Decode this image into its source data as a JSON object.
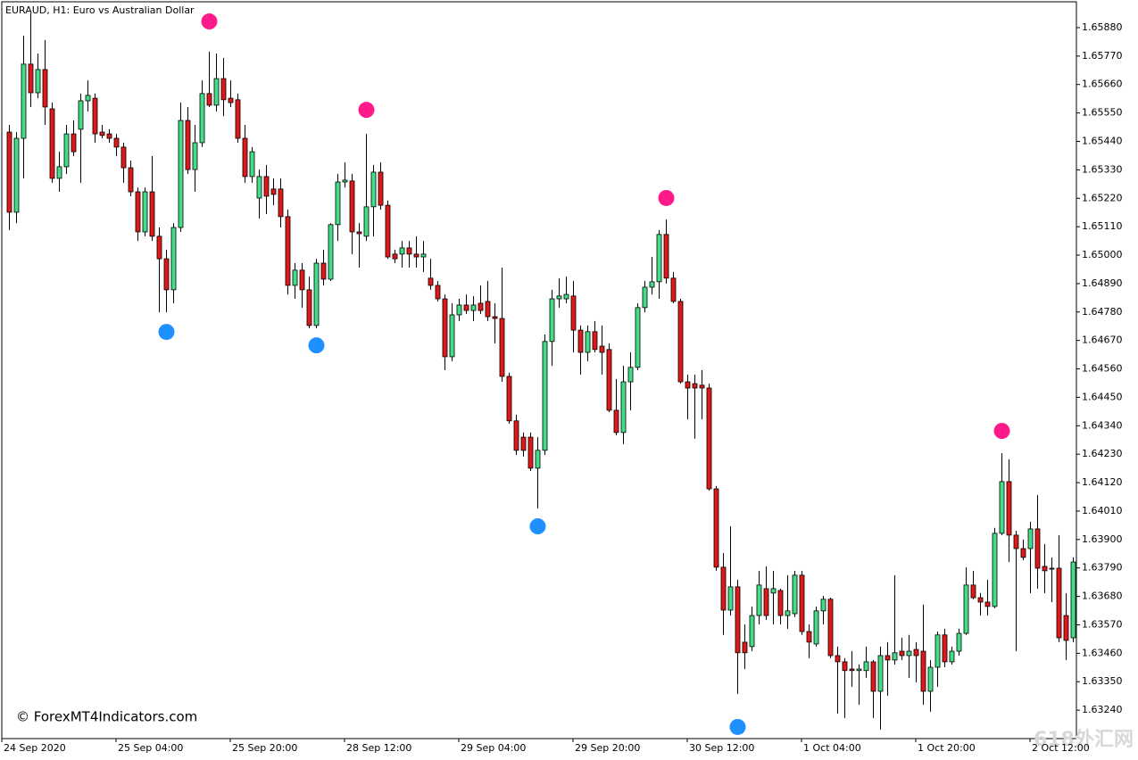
{
  "chart_data": {
    "type": "candlestick",
    "title": "EURAUD, H1:  Euro vs Australian Dollar",
    "annotation": "© ForexMT4Indicators.com",
    "watermark": "618外汇网",
    "up_color": "#44dd88",
    "down_color": "#e01818",
    "ylim": [
      1.6313,
      1.6598
    ],
    "yticks": [
      {
        "value": 1.6588,
        "label": "1.65880"
      },
      {
        "value": 1.6577,
        "label": "1.65770"
      },
      {
        "value": 1.6566,
        "label": "1.65660"
      },
      {
        "value": 1.6555,
        "label": "1.65550"
      },
      {
        "value": 1.6544,
        "label": "1.65440"
      },
      {
        "value": 1.6533,
        "label": "1.65330"
      },
      {
        "value": 1.6522,
        "label": "1.65220"
      },
      {
        "value": 1.6511,
        "label": "1.65110"
      },
      {
        "value": 1.65,
        "label": "1.65000"
      },
      {
        "value": 1.6489,
        "label": "1.64890"
      },
      {
        "value": 1.6478,
        "label": "1.64780"
      },
      {
        "value": 1.6467,
        "label": "1.64670"
      },
      {
        "value": 1.6456,
        "label": "1.64560"
      },
      {
        "value": 1.6445,
        "label": "1.64450"
      },
      {
        "value": 1.6434,
        "label": "1.64340"
      },
      {
        "value": 1.6423,
        "label": "1.64230"
      },
      {
        "value": 1.6412,
        "label": "1.64120"
      },
      {
        "value": 1.6401,
        "label": "1.64010"
      },
      {
        "value": 1.639,
        "label": "1.63900"
      },
      {
        "value": 1.6379,
        "label": "1.63790"
      },
      {
        "value": 1.6368,
        "label": "1.63680"
      },
      {
        "value": 1.6357,
        "label": "1.63570"
      },
      {
        "value": 1.6346,
        "label": "1.63460"
      },
      {
        "value": 1.6335,
        "label": "1.63350"
      },
      {
        "value": 1.6324,
        "label": "1.63240"
      }
    ],
    "categories": [
      "24 Sep 2020",
      null,
      null,
      null,
      null,
      null,
      null,
      null,
      null,
      null,
      null,
      null,
      null,
      null,
      null,
      null,
      "25 Sep 04:00",
      null,
      null,
      null,
      null,
      null,
      null,
      null,
      null,
      null,
      null,
      null,
      null,
      null,
      null,
      null,
      "25 Sep 20:00",
      null,
      null,
      null,
      null,
      null,
      null,
      null,
      null,
      null,
      null,
      null,
      null,
      null,
      null,
      null,
      "28 Sep 12:00",
      null,
      null,
      null,
      null,
      null,
      null,
      null,
      null,
      null,
      null,
      null,
      null,
      null,
      null,
      null,
      "29 Sep 04:00",
      null,
      null,
      null,
      null,
      null,
      null,
      null,
      null,
      null,
      null,
      null,
      null,
      null,
      null,
      null,
      "29 Sep 20:00",
      null,
      null,
      null,
      null,
      null,
      null,
      null,
      null,
      null,
      null,
      null,
      null,
      null,
      null,
      null,
      "30 Sep 12:00",
      null,
      null,
      null,
      null,
      null,
      null,
      null,
      null,
      null,
      null,
      null,
      null,
      null,
      null,
      null,
      "1 Oct 04:00",
      null,
      null,
      null,
      null,
      null,
      null,
      null,
      null,
      null,
      null,
      null,
      null,
      null,
      null,
      null,
      "1 Oct 20:00",
      null,
      null,
      null,
      null,
      null,
      null,
      null,
      null,
      null,
      null,
      null,
      null,
      null,
      null,
      null,
      "2 Oct 12:00",
      null,
      null,
      null,
      null,
      null
    ],
    "ohlc": [
      [
        1.65476,
        1.65504,
        1.65097,
        1.65166
      ],
      [
        1.65166,
        1.65476,
        1.65124,
        1.65452
      ],
      [
        1.65452,
        1.65849,
        1.65297,
        1.65739
      ],
      [
        1.65739,
        1.65935,
        1.65573,
        1.65628
      ],
      [
        1.65628,
        1.6578,
        1.65607,
        1.65718
      ],
      [
        1.65718,
        1.65832,
        1.65504,
        1.65573
      ],
      [
        1.65566,
        1.6559,
        1.6528,
        1.65297
      ],
      [
        1.65297,
        1.654,
        1.65245,
        1.65342
      ],
      [
        1.65342,
        1.65504,
        1.65314,
        1.65469
      ],
      [
        1.65469,
        1.65521,
        1.65383,
        1.654
      ],
      [
        1.65487,
        1.65625,
        1.6528,
        1.65597
      ],
      [
        1.65597,
        1.65676,
        1.65556,
        1.65618
      ],
      [
        1.65607,
        1.65625,
        1.65435,
        1.65469
      ],
      [
        1.65476,
        1.65504,
        1.65452,
        1.65463
      ],
      [
        1.65469,
        1.65487,
        1.65435,
        1.65452
      ],
      [
        1.65452,
        1.65469,
        1.65383,
        1.65418
      ],
      [
        1.65418,
        1.65435,
        1.6528,
        1.65338
      ],
      [
        1.65338,
        1.65366,
        1.65228,
        1.65245
      ],
      [
        1.65245,
        1.65262,
        1.65055,
        1.6509
      ],
      [
        1.6509,
        1.65262,
        1.65073,
        1.65245
      ],
      [
        1.65245,
        1.65383,
        1.65055,
        1.65073
      ],
      [
        1.65073,
        1.65107,
        1.64779,
        1.64986
      ],
      [
        1.64986,
        1.65021,
        1.64779,
        1.64866
      ],
      [
        1.64866,
        1.65124,
        1.64814,
        1.65107
      ],
      [
        1.65107,
        1.6559,
        1.6509,
        1.65521
      ],
      [
        1.65521,
        1.65573,
        1.65314,
        1.65331
      ],
      [
        1.65331,
        1.65504,
        1.65245,
        1.65435
      ],
      [
        1.65435,
        1.65676,
        1.65418,
        1.65625
      ],
      [
        1.65625,
        1.65787,
        1.65573,
        1.6558
      ],
      [
        1.6558,
        1.6578,
        1.65556,
        1.65683
      ],
      [
        1.65683,
        1.65763,
        1.65538,
        1.65601
      ],
      [
        1.65607,
        1.65676,
        1.65573,
        1.6559
      ],
      [
        1.65601,
        1.65625,
        1.65435,
        1.65452
      ],
      [
        1.65452,
        1.65504,
        1.6528,
        1.65304
      ],
      [
        1.65304,
        1.65418,
        1.6528,
        1.654
      ],
      [
        1.65221,
        1.65331,
        1.65142,
        1.65304
      ],
      [
        1.65304,
        1.65349,
        1.65159,
        1.65228
      ],
      [
        1.65256,
        1.65297,
        1.65193,
        1.65235
      ],
      [
        1.65256,
        1.65297,
        1.65107,
        1.65149
      ],
      [
        1.65149,
        1.65176,
        1.64848,
        1.64883
      ],
      [
        1.64883,
        1.64969,
        1.64831,
        1.64942
      ],
      [
        1.64942,
        1.64969,
        1.64797,
        1.64866
      ],
      [
        1.64866,
        1.64917,
        1.64717,
        1.64728
      ],
      [
        1.64728,
        1.64986,
        1.64717,
        1.64969
      ],
      [
        1.64969,
        1.65021,
        1.64883,
        1.64907
      ],
      [
        1.64907,
        1.65124,
        1.649,
        1.65118
      ],
      [
        1.65118,
        1.65314,
        1.65055,
        1.65283
      ],
      [
        1.65283,
        1.65359,
        1.65262,
        1.6529
      ],
      [
        1.65287,
        1.65314,
        1.65004,
        1.6509
      ],
      [
        1.6509,
        1.65124,
        1.64952,
        1.65083
      ],
      [
        1.65073,
        1.65469,
        1.65055,
        1.65187
      ],
      [
        1.65187,
        1.65349,
        1.65073,
        1.65321
      ],
      [
        1.65321,
        1.65359,
        1.65176,
        1.65193
      ],
      [
        1.65193,
        1.65211,
        1.64986,
        1.64993
      ],
      [
        1.65004,
        1.65021,
        1.64969,
        1.64986
      ],
      [
        1.65004,
        1.65055,
        1.64952,
        1.65028
      ],
      [
        1.65028,
        1.65055,
        1.64952,
        1.65004
      ],
      [
        1.65004,
        1.65073,
        1.64952,
        1.64993
      ],
      [
        1.64993,
        1.65055,
        1.64935,
        1.65004
      ],
      [
        1.64911,
        1.64986,
        1.64866,
        1.64883
      ],
      [
        1.64883,
        1.649,
        1.64821,
        1.64831
      ],
      [
        1.64831,
        1.64848,
        1.64555,
        1.64607
      ],
      [
        1.64607,
        1.64814,
        1.6459,
        1.64769
      ],
      [
        1.64769,
        1.64831,
        1.64745,
        1.64807
      ],
      [
        1.64807,
        1.64848,
        1.64773,
        1.64786
      ],
      [
        1.64786,
        1.64842,
        1.64745,
        1.64807
      ],
      [
        1.64814,
        1.64883,
        1.64773,
        1.64786
      ],
      [
        1.64821,
        1.649,
        1.64745,
        1.64762
      ],
      [
        1.64762,
        1.64814,
        1.64659,
        1.64755
      ],
      [
        1.64755,
        1.64952,
        1.6451,
        1.64531
      ],
      [
        1.64531,
        1.64545,
        1.64348,
        1.64359
      ],
      [
        1.64359,
        1.64383,
        1.64227,
        1.64245
      ],
      [
        1.64296,
        1.64314,
        1.64221,
        1.64245
      ],
      [
        1.64296,
        1.64314,
        1.64165,
        1.64176
      ],
      [
        1.64176,
        1.64296,
        1.6402,
        1.64245
      ],
      [
        1.64245,
        1.64693,
        1.64227,
        1.64666
      ],
      [
        1.64666,
        1.64866,
        1.64572,
        1.64831
      ],
      [
        1.64831,
        1.64911,
        1.64797,
        1.64842
      ],
      [
        1.64831,
        1.64917,
        1.64814,
        1.64848
      ],
      [
        1.64842,
        1.649,
        1.64624,
        1.6471
      ],
      [
        1.6471,
        1.64728,
        1.64538,
        1.64624
      ],
      [
        1.64624,
        1.64728,
        1.6459,
        1.64704
      ],
      [
        1.64704,
        1.64745,
        1.64624,
        1.64635
      ],
      [
        1.64648,
        1.64728,
        1.64538,
        1.64624
      ],
      [
        1.64635,
        1.64659,
        1.64393,
        1.644
      ],
      [
        1.644,
        1.64521,
        1.64303,
        1.64314
      ],
      [
        1.64314,
        1.64572,
        1.64269,
        1.6451
      ],
      [
        1.6451,
        1.64624,
        1.644,
        1.64566
      ],
      [
        1.64566,
        1.64814,
        1.64555,
        1.64797
      ],
      [
        1.64797,
        1.649,
        1.64779,
        1.64876
      ],
      [
        1.64876,
        1.64993,
        1.64848,
        1.64897
      ],
      [
        1.64897,
        1.65097,
        1.64831,
        1.6508
      ],
      [
        1.6508,
        1.65138,
        1.6489,
        1.64911
      ],
      [
        1.64911,
        1.64935,
        1.64814,
        1.64821
      ],
      [
        1.64821,
        1.64831,
        1.64503,
        1.6451
      ],
      [
        1.6451,
        1.64538,
        1.64365,
        1.64486
      ],
      [
        1.64503,
        1.64538,
        1.6429,
        1.64486
      ],
      [
        1.64497,
        1.64555,
        1.64365,
        1.64486
      ],
      [
        1.64486,
        1.64503,
        1.64089,
        1.64096
      ],
      [
        1.64096,
        1.64107,
        1.63779,
        1.63793
      ],
      [
        1.63793,
        1.63848,
        1.63531,
        1.63627
      ],
      [
        1.63627,
        1.63951,
        1.63606,
        1.63717
      ],
      [
        1.63717,
        1.63744,
        1.63303,
        1.63462
      ],
      [
        1.63503,
        1.63572,
        1.63399,
        1.63462
      ],
      [
        1.63486,
        1.63641,
        1.63468,
        1.63606
      ],
      [
        1.63606,
        1.63779,
        1.63572,
        1.63724
      ],
      [
        1.6371,
        1.63796,
        1.63589,
        1.63606
      ],
      [
        1.63693,
        1.63779,
        1.63572,
        1.6371
      ],
      [
        1.63703,
        1.6371,
        1.63572,
        1.63606
      ],
      [
        1.63606,
        1.63762,
        1.63555,
        1.63624
      ],
      [
        1.63613,
        1.63779,
        1.636,
        1.63762
      ],
      [
        1.63762,
        1.63779,
        1.63531,
        1.63544
      ],
      [
        1.63544,
        1.63572,
        1.63441,
        1.63503
      ],
      [
        1.63496,
        1.63641,
        1.63486,
        1.63624
      ],
      [
        1.63624,
        1.63682,
        1.63572,
        1.63669
      ],
      [
        1.63669,
        1.63675,
        1.63441,
        1.63451
      ],
      [
        1.63451,
        1.63486,
        1.63227,
        1.63427
      ],
      [
        1.63427,
        1.63441,
        1.6321,
        1.63393
      ],
      [
        1.63399,
        1.63468,
        1.6333,
        1.63393
      ],
      [
        1.63393,
        1.63417,
        1.63261,
        1.63399
      ],
      [
        1.63393,
        1.63486,
        1.63365,
        1.63427
      ],
      [
        1.63427,
        1.63434,
        1.6321,
        1.63313
      ],
      [
        1.63313,
        1.63486,
        1.63165,
        1.63451
      ],
      [
        1.63451,
        1.63503,
        1.63296,
        1.63434
      ],
      [
        1.63434,
        1.63762,
        1.63417,
        1.63462
      ],
      [
        1.63468,
        1.6352,
        1.63434,
        1.63451
      ],
      [
        1.63451,
        1.63531,
        1.63365,
        1.63468
      ],
      [
        1.63475,
        1.63503,
        1.63348,
        1.63451
      ],
      [
        1.63468,
        1.63648,
        1.63261,
        1.63313
      ],
      [
        1.63313,
        1.63434,
        1.63234,
        1.63406
      ],
      [
        1.63406,
        1.63544,
        1.6333,
        1.63531
      ],
      [
        1.63531,
        1.63555,
        1.63406,
        1.63427
      ],
      [
        1.63427,
        1.63486,
        1.63417,
        1.63468
      ],
      [
        1.63468,
        1.63555,
        1.63451,
        1.63537
      ],
      [
        1.63537,
        1.63793,
        1.63531,
        1.63724
      ],
      [
        1.63724,
        1.63779,
        1.63669,
        1.63675
      ],
      [
        1.63675,
        1.63693,
        1.63606,
        1.63658
      ],
      [
        1.63658,
        1.63744,
        1.63606,
        1.63641
      ],
      [
        1.63641,
        1.63945,
        1.63634,
        1.63924
      ],
      [
        1.63924,
        1.64234,
        1.63917,
        1.64124
      ],
      [
        1.64124,
        1.6421,
        1.63813,
        1.63917
      ],
      [
        1.63917,
        1.63934,
        1.63468,
        1.63865
      ],
      [
        1.63865,
        1.639,
        1.6382,
        1.63831
      ],
      [
        1.63865,
        1.63969,
        1.63693,
        1.63941
      ],
      [
        1.63941,
        1.64072,
        1.6371,
        1.63789
      ],
      [
        1.63796,
        1.63882,
        1.63693,
        1.63779
      ],
      [
        1.63789,
        1.63831,
        1.63658,
        1.63786
      ],
      [
        1.63789,
        1.63917,
        1.63503,
        1.6352
      ],
      [
        1.63606,
        1.63693,
        1.63434,
        1.6351
      ],
      [
        1.6352,
        1.63831,
        1.63503,
        1.63813
      ]
    ],
    "signals": [
      {
        "color": "#ff1a8c",
        "x": [
          28,
          50,
          92,
          139
        ],
        "values": [
          1.65904,
          1.65562,
          1.65221,
          1.6432
        ]
      },
      {
        "color": "#1e90ff",
        "x": [
          22,
          43,
          74,
          102
        ],
        "values": [
          1.64703,
          1.64651,
          1.63951,
          1.63175
        ]
      }
    ]
  }
}
